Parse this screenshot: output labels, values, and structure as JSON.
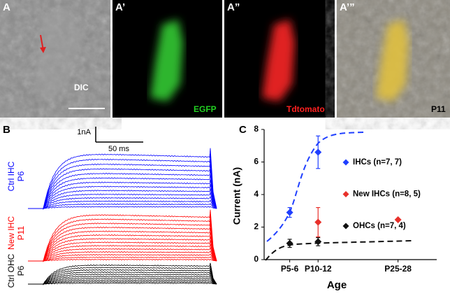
{
  "panels": {
    "a": {
      "label": "A",
      "caption": "DIC"
    },
    "a1": {
      "label": "A’",
      "caption": "EGFP"
    },
    "a2": {
      "label": "A”",
      "caption": "Tdtomato"
    },
    "a3": {
      "label": "A’”",
      "caption": "P11"
    },
    "b": {
      "label": "B",
      "scale_current": "1nA",
      "scale_time": "50 ms",
      "traces": [
        {
          "label": "Ctrl IHC",
          "age": "P6",
          "color": "#0000ff"
        },
        {
          "label": "New IHC",
          "age": "P11",
          "color": "#ff0000"
        },
        {
          "label": "Ctrl OHC",
          "age": "P6",
          "color": "#000000"
        }
      ]
    },
    "c": {
      "label": "C"
    }
  },
  "chart_data": {
    "type": "scatter",
    "x_label": "Age",
    "y_label": "Current  (nA)",
    "xlim": [
      0,
      34
    ],
    "xticks": [
      {
        "value": 5.5,
        "label": "P5-6"
      },
      {
        "value": 11,
        "label": "P10-12"
      },
      {
        "value": 26.5,
        "label": "P25-28"
      }
    ],
    "ylim": [
      0,
      8
    ],
    "yticks": [
      0,
      2,
      4,
      6,
      8
    ],
    "legend": "upper right",
    "series": [
      {
        "name": "IHCs  (n=7, 7)",
        "color": "#1f3fff",
        "x": [
          5.5,
          11,
          26.5
        ],
        "values": [
          2.9,
          6.6,
          null
        ],
        "errors": [
          0.3,
          1.0,
          null
        ]
      },
      {
        "name": "New IHCs  (n=8, 5)",
        "color": "#e8302a",
        "x": [
          5.5,
          11,
          26.5
        ],
        "values": [
          null,
          2.3,
          2.45
        ],
        "errors": [
          null,
          0.9,
          null
        ]
      },
      {
        "name": "OHCs  (n=7, 4)",
        "color": "#111111",
        "x": [
          5.5,
          11,
          26.5
        ],
        "values": [
          1.0,
          1.1,
          null
        ],
        "errors": [
          0.25,
          0.25,
          null
        ]
      }
    ]
  }
}
